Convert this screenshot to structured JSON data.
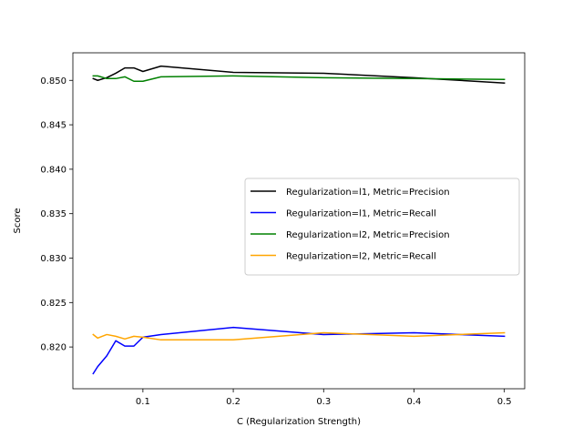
{
  "chart_data": {
    "type": "line",
    "title": "",
    "xlabel": "C (Regularization Strength)",
    "ylabel": "Score",
    "xlim": [
      0.0225,
      0.5225
    ],
    "ylim": [
      0.8153,
      0.8531
    ],
    "xticks": [
      0.1,
      0.2,
      0.3,
      0.4,
      0.5
    ],
    "xtick_labels": [
      "0.1",
      "0.2",
      "0.3",
      "0.4",
      "0.5"
    ],
    "yticks": [
      0.82,
      0.825,
      0.83,
      0.835,
      0.84,
      0.845,
      0.85
    ],
    "ytick_labels": [
      "0.820",
      "0.825",
      "0.830",
      "0.835",
      "0.840",
      "0.845",
      "0.850"
    ],
    "grid": false,
    "legend_position": "center-right",
    "x": [
      0.045,
      0.05,
      0.06,
      0.07,
      0.08,
      0.09,
      0.1,
      0.12,
      0.2,
      0.3,
      0.4,
      0.5
    ],
    "series": [
      {
        "name": "Regularization=l1, Metric=Precision",
        "color": "#000000",
        "values": [
          0.8502,
          0.85,
          0.8503,
          0.8508,
          0.8514,
          0.8514,
          0.851,
          0.8516,
          0.8509,
          0.8508,
          0.8503,
          0.8497
        ]
      },
      {
        "name": "Regularization=l1, Metric=Recall",
        "color": "#0000ff",
        "values": [
          0.817,
          0.8178,
          0.819,
          0.8207,
          0.8201,
          0.8201,
          0.8211,
          0.8214,
          0.8222,
          0.8214,
          0.8216,
          0.8212
        ]
      },
      {
        "name": "Regularization=l2, Metric=Precision",
        "color": "#008000",
        "values": [
          0.8505,
          0.8505,
          0.8502,
          0.8502,
          0.8504,
          0.8499,
          0.8499,
          0.8504,
          0.8505,
          0.8503,
          0.8502,
          0.8501
        ]
      },
      {
        "name": "Regularization=l2, Metric=Recall",
        "color": "#ffa500",
        "values": [
          0.8214,
          0.821,
          0.8214,
          0.8212,
          0.8209,
          0.8212,
          0.8211,
          0.8208,
          0.8208,
          0.8216,
          0.8212,
          0.8216
        ]
      }
    ]
  }
}
